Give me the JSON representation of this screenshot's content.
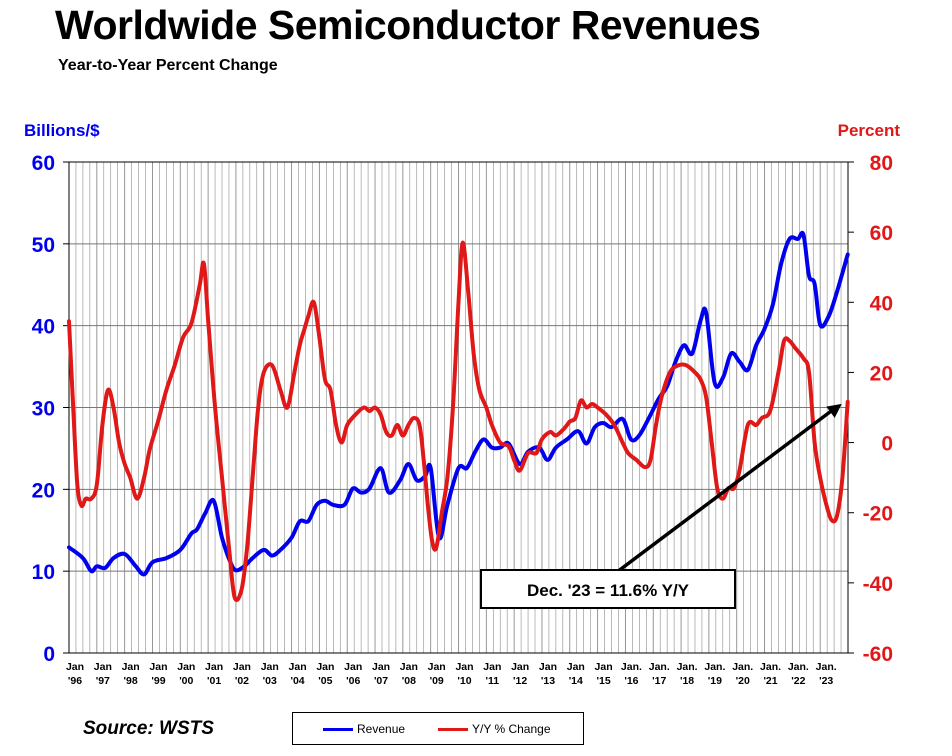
{
  "title": "Worldwide Semiconductor Revenues",
  "subtitle": "Year-to-Year Percent Change",
  "source": "Source: WSTS",
  "colors": {
    "revenue": "#0000ee",
    "yoy": "#e01818",
    "grid": "#888888"
  },
  "legend": {
    "revenue": "Revenue",
    "yoy": "Y/Y % Change"
  },
  "annotation": {
    "text": "Dec. '23 = 11.6% Y/Y"
  },
  "chart_data": {
    "type": "line",
    "title": "Worldwide Semiconductor Revenues",
    "subtitle": "Year-to-Year Percent Change",
    "legend_position": "bottom",
    "grid": true,
    "x_ticks": [
      {
        "label": [
          "Jan",
          "'96"
        ]
      },
      {
        "label": [
          "Jan",
          "'97"
        ]
      },
      {
        "label": [
          "Jan",
          "'98"
        ]
      },
      {
        "label": [
          "Jan",
          "'99"
        ]
      },
      {
        "label": [
          "Jan",
          "'00"
        ]
      },
      {
        "label": [
          "Jan",
          "'01"
        ]
      },
      {
        "label": [
          "Jan",
          "'02"
        ]
      },
      {
        "label": [
          "Jan",
          "'03"
        ]
      },
      {
        "label": [
          "Jan",
          "'04"
        ]
      },
      {
        "label": [
          "Jan",
          "'05"
        ]
      },
      {
        "label": [
          "Jan",
          "'06"
        ]
      },
      {
        "label": [
          "Jan",
          "'07"
        ]
      },
      {
        "label": [
          "Jan",
          "'08"
        ]
      },
      {
        "label": [
          "Jan",
          "'09"
        ]
      },
      {
        "label": [
          "Jan",
          "'10"
        ]
      },
      {
        "label": [
          "Jan",
          "'11"
        ]
      },
      {
        "label": [
          "Jan",
          "'12"
        ]
      },
      {
        "label": [
          "Jan",
          "'13"
        ]
      },
      {
        "label": [
          "Jan",
          "'14"
        ]
      },
      {
        "label": [
          "Jan",
          "'15"
        ]
      },
      {
        "label": [
          "Jan.",
          "'16"
        ]
      },
      {
        "label": [
          "Jan.",
          "'17"
        ]
      },
      {
        "label": [
          "Jan.",
          "'18"
        ]
      },
      {
        "label": [
          "Jan.",
          "'19"
        ]
      },
      {
        "label": [
          "Jan.",
          "'20"
        ]
      },
      {
        "label": [
          "Jan.",
          "'21"
        ]
      },
      {
        "label": [
          "Jan.",
          "'22"
        ]
      },
      {
        "label": [
          "Jan.",
          "'23"
        ]
      }
    ],
    "x_range": [
      1996.0,
      2024.0
    ],
    "y_left": {
      "label": "Billions/$",
      "range": [
        0,
        60
      ],
      "ticks": [
        0,
        10,
        20,
        30,
        40,
        50,
        60
      ]
    },
    "y_right": {
      "label": "Percent",
      "range": [
        -60,
        80
      ],
      "ticks": [
        -60,
        -40,
        -20,
        0,
        20,
        40,
        60,
        80
      ]
    },
    "series": [
      {
        "name": "Revenue",
        "axis": "left",
        "color": "#0000ee",
        "x": [
          1996.0,
          1996.5,
          1996.8,
          1997.0,
          1997.3,
          1997.6,
          1998.0,
          1998.4,
          1998.7,
          1999.0,
          1999.5,
          2000.0,
          2000.4,
          2000.6,
          2000.9,
          2001.2,
          2001.5,
          2001.8,
          2002.0,
          2002.3,
          2002.6,
          2003.0,
          2003.3,
          2003.6,
          2004.0,
          2004.3,
          2004.6,
          2004.9,
          2005.2,
          2005.5,
          2005.9,
          2006.2,
          2006.5,
          2006.8,
          2007.2,
          2007.5,
          2007.9,
          2008.2,
          2008.5,
          2008.8,
          2009.0,
          2009.3,
          2009.6,
          2010.0,
          2010.3,
          2010.6,
          2010.9,
          2011.2,
          2011.5,
          2011.8,
          2012.2,
          2012.5,
          2012.9,
          2013.2,
          2013.5,
          2013.9,
          2014.3,
          2014.6,
          2014.9,
          2015.2,
          2015.5,
          2015.9,
          2016.2,
          2016.5,
          2016.9,
          2017.2,
          2017.5,
          2017.8,
          2018.1,
          2018.4,
          2018.7,
          2018.9,
          2019.2,
          2019.5,
          2019.8,
          2020.1,
          2020.4,
          2020.7,
          2021.0,
          2021.3,
          2021.6,
          2021.9,
          2022.2,
          2022.4,
          2022.6,
          2022.8,
          2023.0,
          2023.3,
          2023.6,
          2023.99
        ],
        "values": [
          12.9,
          11.6,
          10.0,
          10.6,
          10.4,
          11.6,
          12.1,
          10.6,
          9.6,
          11.1,
          11.6,
          12.6,
          14.6,
          15.1,
          17.1,
          18.6,
          14.1,
          11.1,
          10.1,
          10.6,
          11.6,
          12.6,
          11.9,
          12.6,
          14.1,
          16.1,
          16.1,
          18.1,
          18.6,
          18.1,
          18.1,
          20.1,
          19.6,
          20.1,
          22.6,
          19.6,
          21.1,
          23.1,
          21.1,
          21.6,
          22.6,
          14.1,
          18.1,
          22.6,
          22.6,
          24.6,
          26.1,
          25.1,
          25.1,
          25.6,
          23.1,
          24.6,
          25.1,
          23.6,
          25.1,
          26.1,
          27.1,
          25.6,
          27.6,
          28.1,
          27.6,
          28.6,
          26.1,
          26.6,
          29.1,
          31.1,
          32.6,
          35.6,
          37.6,
          36.6,
          40.6,
          41.6,
          33.1,
          33.6,
          36.6,
          35.6,
          34.6,
          37.6,
          39.6,
          42.6,
          47.6,
          50.6,
          50.6,
          51.1,
          46.1,
          45.1,
          40.1,
          41.1,
          44.1,
          48.7
        ]
      },
      {
        "name": "Y/Y % Change",
        "axis": "right",
        "color": "#e01818",
        "x": [
          1996.0,
          1996.15,
          1996.3,
          1996.45,
          1996.6,
          1996.8,
          1997.0,
          1997.2,
          1997.4,
          1997.6,
          1997.8,
          1998.0,
          1998.2,
          1998.45,
          1998.7,
          1998.9,
          1999.2,
          1999.5,
          1999.8,
          2000.1,
          2000.4,
          2000.7,
          2000.85,
          2001.0,
          2001.25,
          2001.5,
          2001.75,
          2001.95,
          2002.2,
          2002.4,
          2002.6,
          2002.8,
          2003.0,
          2003.3,
          2003.6,
          2003.85,
          2004.1,
          2004.3,
          2004.45,
          2004.6,
          2004.8,
          2005.0,
          2005.2,
          2005.4,
          2005.6,
          2005.8,
          2006.0,
          2006.3,
          2006.6,
          2006.8,
          2007.0,
          2007.2,
          2007.4,
          2007.6,
          2007.8,
          2008.0,
          2008.2,
          2008.4,
          2008.6,
          2008.75,
          2008.9,
          2009.05,
          2009.2,
          2009.4,
          2009.6,
          2009.8,
          2010.0,
          2010.15,
          2010.35,
          2010.55,
          2010.75,
          2011.0,
          2011.2,
          2011.5,
          2011.8,
          2012.0,
          2012.2,
          2012.5,
          2012.8,
          2013.0,
          2013.3,
          2013.5,
          2013.8,
          2014.0,
          2014.2,
          2014.4,
          2014.6,
          2014.8,
          2015.0,
          2015.3,
          2015.6,
          2015.9,
          2016.1,
          2016.4,
          2016.7,
          2016.9,
          2017.1,
          2017.3,
          2017.6,
          2017.9,
          2018.2,
          2018.5,
          2018.7,
          2018.9,
          2019.1,
          2019.3,
          2019.5,
          2019.7,
          2019.9,
          2020.1,
          2020.4,
          2020.7,
          2020.9,
          2021.2,
          2021.5,
          2021.7,
          2021.9,
          2022.1,
          2022.4,
          2022.6,
          2022.8,
          2023.0,
          2023.2,
          2023.4,
          2023.6,
          2023.8,
          2023.99
        ],
        "values": [
          34.6,
          10.0,
          -12.0,
          -18.0,
          -16.0,
          -16.0,
          -12.0,
          5.0,
          15.0,
          10.0,
          0.0,
          -6.0,
          -10.0,
          -16.0,
          -10.0,
          -2.0,
          6.0,
          15.0,
          22.0,
          30.0,
          34.0,
          45.0,
          51.0,
          35.0,
          10.0,
          -10.0,
          -30.0,
          -44.0,
          -42.0,
          -30.0,
          -10.0,
          10.0,
          20.0,
          22.0,
          15.0,
          10.0,
          20.0,
          28.0,
          32.0,
          36.0,
          40.0,
          30.0,
          18.0,
          15.0,
          5.0,
          0.0,
          5.0,
          8.0,
          10.0,
          9.0,
          10.0,
          8.0,
          3.0,
          2.0,
          5.0,
          2.0,
          5.0,
          7.0,
          5.0,
          -5.0,
          -18.0,
          -28.0,
          -30.0,
          -20.0,
          -10.0,
          10.0,
          40.0,
          57.0,
          43.0,
          25.0,
          15.0,
          10.0,
          5.0,
          0.0,
          -1.0,
          -5.0,
          -8.0,
          -3.0,
          -3.0,
          1.0,
          3.0,
          2.0,
          4.0,
          6.0,
          7.0,
          12.0,
          10.0,
          11.0,
          10.0,
          8.0,
          5.0,
          0.0,
          -3.0,
          -5.0,
          -7.0,
          -5.0,
          5.0,
          13.0,
          20.0,
          22.0,
          22.0,
          20.0,
          18.0,
          13.0,
          0.0,
          -13.0,
          -16.0,
          -13.0,
          -13.0,
          -8.0,
          5.0,
          5.0,
          7.0,
          9.0,
          20.0,
          29.0,
          29.0,
          27.0,
          24.0,
          20.0,
          0.0,
          -10.0,
          -17.0,
          -22.0,
          -21.0,
          -10.0,
          11.6
        ]
      }
    ],
    "annotations": [
      {
        "text": "Dec. '23 = 11.6% Y/Y",
        "points_to": {
          "x": 2023.99,
          "y": 11.6,
          "axis": "right"
        }
      }
    ]
  }
}
